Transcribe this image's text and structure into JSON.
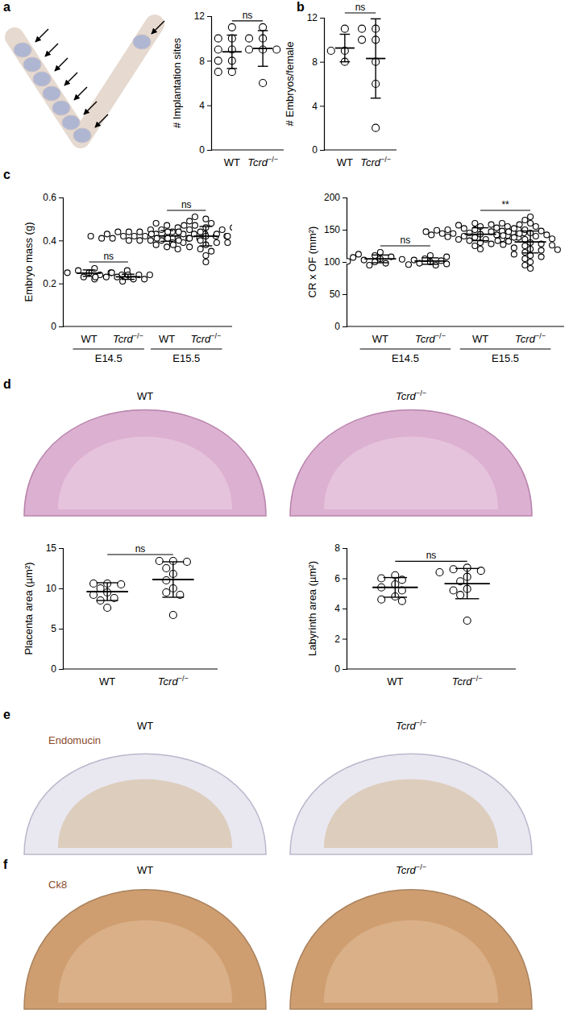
{
  "panels": [
    "a",
    "b",
    "c",
    "d",
    "e",
    "f"
  ],
  "image_rows": [
    {
      "titles": [
        "WT",
        "Tcrd−/−"
      ]
    },
    {
      "stain": "Endomucin",
      "titles": [
        "WT",
        "Tcrd−/−"
      ]
    },
    {
      "stain": "Ck8",
      "titles": [
        "WT",
        "Tcrd−/−"
      ]
    }
  ],
  "chart_data": [
    {
      "type": "scatter",
      "y_label": "# Implantation sites",
      "categories": [
        "WT",
        "Tcrd−/−"
      ],
      "values": [
        [
          11,
          10,
          10,
          9,
          9,
          8,
          7,
          7,
          8
        ],
        [
          11,
          10,
          10,
          9,
          9,
          9,
          6
        ]
      ],
      "mean": [
        8.8,
        9.1
      ],
      "sd": [
        1.5,
        1.6
      ],
      "ylim": [
        0,
        12
      ],
      "yticks": [
        0,
        4,
        8,
        12
      ],
      "comparisons": [
        {
          "between": [
            0,
            1
          ],
          "label": "ns"
        }
      ]
    },
    {
      "type": "scatter",
      "y_label": "# Embryos/female",
      "categories": [
        "WT",
        "Tcrd−/−"
      ],
      "values": [
        [
          11,
          9,
          9,
          8
        ],
        [
          11,
          11,
          10,
          10,
          8,
          6,
          2
        ]
      ],
      "mean": [
        9.25,
        8.3
      ],
      "sd": [
        1.25,
        3.6
      ],
      "ylim": [
        0,
        12
      ],
      "yticks": [
        0,
        4,
        8,
        12
      ],
      "comparisons": [
        {
          "between": [
            0,
            1
          ],
          "label": "ns"
        }
      ]
    },
    {
      "type": "scatter",
      "y_label": "Embryo mass (g)",
      "categories": [
        "WT",
        "Tcrd−/−",
        "WT",
        "Tcrd−/−"
      ],
      "x_groups": [
        {
          "label": "E14.5",
          "span": [
            0,
            1
          ]
        },
        {
          "label": "E15.5",
          "span": [
            2,
            3
          ]
        }
      ],
      "values": [
        [
          0.25,
          0.26,
          0.24,
          0.25,
          0.27,
          0.23,
          0.25,
          0.26,
          0.24,
          0.25,
          0.22,
          0.26
        ],
        [
          0.24,
          0.23,
          0.22,
          0.24,
          0.25,
          0.23,
          0.22,
          0.24,
          0.23,
          0.21
        ],
        [
          0.42,
          0.43,
          0.41,
          0.44,
          0.4,
          0.42,
          0.45,
          0.39,
          0.43,
          0.41,
          0.46,
          0.38,
          0.42,
          0.44,
          0.4,
          0.43,
          0.41,
          0.47,
          0.37,
          0.42,
          0.44,
          0.4,
          0.43,
          0.42,
          0.41,
          0.45,
          0.39,
          0.42,
          0.44,
          0.36,
          0.43,
          0.41,
          0.4,
          0.42,
          0.48,
          0.42
        ],
        [
          0.42,
          0.44,
          0.4,
          0.46,
          0.38,
          0.43,
          0.47,
          0.36,
          0.41,
          0.45,
          0.39,
          0.5,
          0.33,
          0.42,
          0.44,
          0.4,
          0.48,
          0.37,
          0.43,
          0.41,
          0.45,
          0.3,
          0.42,
          0.46,
          0.39,
          0.44,
          0.41,
          0.49,
          0.35,
          0.43,
          0.4,
          0.47,
          0.38,
          0.42,
          0.45,
          0.51
        ]
      ],
      "mean": [
        0.248,
        0.231,
        0.421,
        0.42
      ],
      "sd": [
        0.015,
        0.012,
        0.025,
        0.045
      ],
      "ylim": [
        0,
        0.6
      ],
      "yticks": [
        0,
        0.2,
        0.4,
        0.6
      ],
      "comparisons": [
        {
          "between": [
            0,
            1
          ],
          "label": "ns"
        },
        {
          "between": [
            2,
            3
          ],
          "label": "ns"
        }
      ]
    },
    {
      "type": "scatter",
      "y_label": "CR x OF (mm²)",
      "categories": [
        "WT",
        "Tcrd−/−",
        "WT",
        "Tcrd−/−"
      ],
      "x_groups": [
        {
          "label": "E14.5",
          "span": [
            0,
            1
          ]
        },
        {
          "label": "E15.5",
          "span": [
            2,
            3
          ]
        }
      ],
      "values": [
        [
          105,
          110,
          100,
          98,
          115,
          108,
          103,
          95,
          112,
          104,
          107,
          101
        ],
        [
          100,
          105,
          98,
          110,
          95,
          102,
          103,
          97,
          108,
          96
        ],
        [
          143,
          150,
          138,
          155,
          130,
          147,
          160,
          135,
          145,
          140,
          152,
          125,
          148,
          142,
          158,
          136,
          144,
          150,
          128,
          146,
          139,
          153,
          141,
          157,
          133,
          149,
          145,
          120,
          151,
          142,
          138,
          160,
          147,
          135,
          144,
          155
        ],
        [
          130,
          145,
          120,
          160,
          110,
          135,
          150,
          100,
          125,
          140,
          165,
          95,
          128,
          138,
          155,
          115,
          132,
          148,
          105,
          142,
          122,
          170,
          118,
          136,
          152,
          90,
          127,
          144,
          112,
          133,
          158,
          108,
          126,
          141,
          119,
          147
        ]
      ],
      "mean": [
        104.8,
        101.4,
        143,
        131
      ],
      "sd": [
        6,
        5,
        10,
        17
      ],
      "ylim": [
        0,
        200
      ],
      "yticks": [
        0,
        50,
        100,
        150,
        200
      ],
      "comparisons": [
        {
          "between": [
            0,
            1
          ],
          "label": "ns"
        },
        {
          "between": [
            2,
            3
          ],
          "label": "**"
        }
      ]
    },
    {
      "type": "scatter",
      "y_label": "Placenta area (µm²)",
      "categories": [
        "WT",
        "Tcrd−/−"
      ],
      "values": [
        [
          10.6,
          10.6,
          10.5,
          10.0,
          9.5,
          9.2,
          8.8,
          8.5,
          7.6
        ],
        [
          13.4,
          13.4,
          13.3,
          12.5,
          11.8,
          11.0,
          10.0,
          9.5,
          9.2,
          6.7
        ]
      ],
      "mean": [
        9.6,
        11.1
      ],
      "sd": [
        1.1,
        2.2
      ],
      "ylim": [
        0,
        15
      ],
      "yticks": [
        0,
        5,
        10,
        15
      ],
      "comparisons": [
        {
          "between": [
            0,
            1
          ],
          "label": "ns"
        }
      ]
    },
    {
      "type": "scatter",
      "y_label": "Labyrinth area (µm²)",
      "categories": [
        "WT",
        "Tcrd−/−"
      ],
      "values": [
        [
          6.2,
          6.0,
          5.9,
          5.6,
          5.4,
          5.2,
          4.8,
          4.6,
          4.5
        ],
        [
          6.7,
          6.6,
          6.5,
          6.4,
          6.1,
          5.8,
          5.3,
          5.2,
          4.9,
          3.2
        ]
      ],
      "mean": [
        5.4,
        5.65
      ],
      "sd": [
        0.65,
        1.0
      ],
      "ylim": [
        0,
        8
      ],
      "yticks": [
        0,
        2,
        4,
        6,
        8
      ],
      "comparisons": [
        {
          "between": [
            0,
            1
          ],
          "label": "ns"
        }
      ]
    }
  ]
}
